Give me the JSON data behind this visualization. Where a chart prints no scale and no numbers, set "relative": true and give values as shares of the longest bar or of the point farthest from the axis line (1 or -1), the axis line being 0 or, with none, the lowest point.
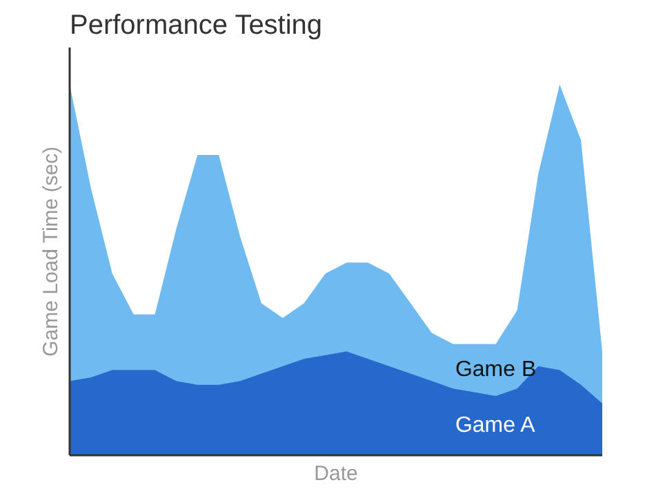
{
  "chart_data": {
    "type": "area",
    "title": "Performance Testing",
    "xlabel": "Date",
    "ylabel": "Game Load Time (sec)",
    "relative": true,
    "legend": false,
    "categories": [
      null,
      null,
      null,
      null,
      null,
      null,
      null,
      null,
      null,
      null,
      null,
      null,
      null,
      null,
      null,
      null,
      null,
      null,
      null,
      null,
      null,
      null,
      null,
      null,
      null,
      null
    ],
    "series": [
      {
        "name": "Game B",
        "color": "#5fb4f0",
        "values": [
          1.0,
          0.72,
          0.49,
          0.38,
          0.38,
          0.61,
          0.81,
          0.81,
          0.59,
          0.41,
          0.37,
          0.41,
          0.49,
          0.52,
          0.52,
          0.49,
          0.41,
          0.33,
          0.3,
          0.3,
          0.3,
          0.39,
          0.76,
          1.0,
          0.85,
          0.28
        ]
      },
      {
        "name": "Game A",
        "color": "#1f5fc8",
        "values": [
          0.2,
          0.21,
          0.23,
          0.23,
          0.23,
          0.2,
          0.19,
          0.19,
          0.2,
          0.22,
          0.24,
          0.26,
          0.27,
          0.28,
          0.26,
          0.24,
          0.22,
          0.2,
          0.18,
          0.17,
          0.16,
          0.18,
          0.24,
          0.23,
          0.19,
          0.14
        ]
      }
    ]
  }
}
